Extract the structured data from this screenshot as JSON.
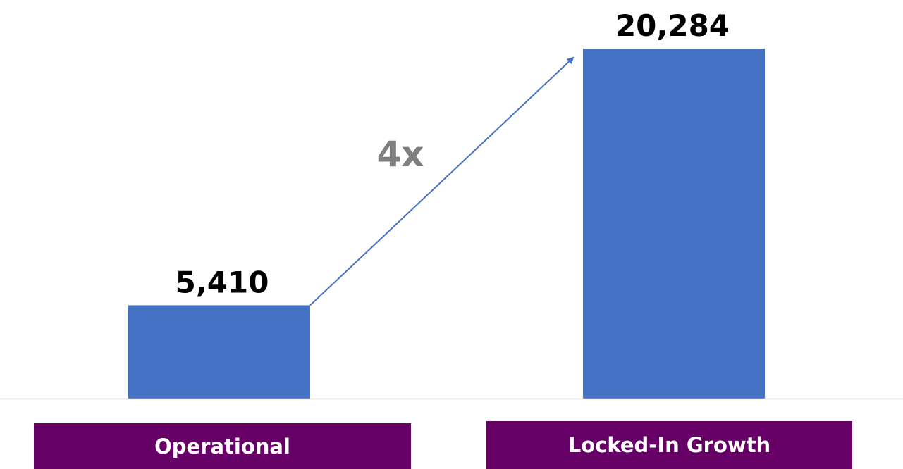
{
  "chart_data": {
    "type": "bar",
    "categories": [
      "Operational",
      "Locked-In Growth"
    ],
    "values": [
      5410,
      20284
    ],
    "value_labels": [
      "5,410",
      "20,284"
    ],
    "annotation": "4x",
    "ylim": [
      0,
      20284
    ],
    "grid": false,
    "bar_color": "#4472c4",
    "arrow_color": "#4472c4",
    "category_box_color": "#660066",
    "annotation_color": "#7f7f7f",
    "axis_color": "#d9d9d9"
  }
}
